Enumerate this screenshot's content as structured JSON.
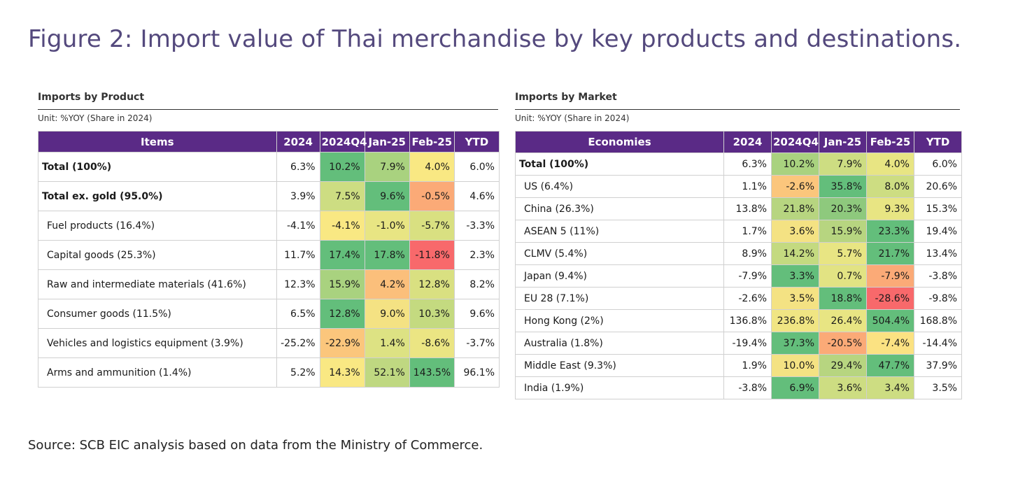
{
  "figure_title": "Figure 2: Import value of Thai merchandise by key products and destinations.",
  "source": "Source: SCB EIC analysis based on data from the Ministry of Commerce.",
  "colors": {
    "header_bg": "#5a2a86",
    "title": "#54497d",
    "heat_dark_green": "#63be7b",
    "heat_green": "#a9d27f",
    "heat_yellow": "#f9e883",
    "heat_orange": "#fbaa77",
    "heat_red": "#f8696b"
  },
  "products": {
    "title": "Imports by Product",
    "unit": "Unit: %YOY (Share in 2024)",
    "headers": [
      "Items",
      "2024",
      "2024Q4",
      "Jan-25",
      "Feb-25",
      "YTD"
    ],
    "rows": [
      {
        "label": "Total (100%)",
        "style": "bold",
        "v2024": "6.3%",
        "q4": "10.2%",
        "jan": "7.9%",
        "feb": "4.0%",
        "ytd": "6.0%",
        "c_q4": "#63be7b",
        "c_jan": "#a9d27f",
        "c_feb": "#f9e883"
      },
      {
        "label": "Total ex. gold (95.0%)",
        "style": "bold",
        "v2024": "3.9%",
        "q4": "7.5%",
        "jan": "9.6%",
        "feb": "-0.5%",
        "ytd": "4.6%",
        "c_q4": "#cddd82",
        "c_jan": "#63be7b",
        "c_feb": "#fbaa77"
      },
      {
        "label": "Fuel products (16.4%)",
        "style": "indent",
        "v2024": "-4.1%",
        "q4": "-4.1%",
        "jan": "-1.0%",
        "feb": "-5.7%",
        "ytd": "-3.3%",
        "c_q4": "#f9e883",
        "c_jan": "#e8e583",
        "c_feb": "#d9e081"
      },
      {
        "label": "Capital goods (25.3%)",
        "style": "indent",
        "v2024": "11.7%",
        "q4": "17.4%",
        "jan": "17.8%",
        "feb": "-11.8%",
        "ytd": "2.3%",
        "c_q4": "#63be7b",
        "c_jan": "#63be7b",
        "c_feb": "#f8696b"
      },
      {
        "label": "Raw and intermediate materials (41.6%)",
        "style": "indent",
        "v2024": "12.3%",
        "q4": "15.9%",
        "jan": "4.2%",
        "feb": "12.8%",
        "ytd": "8.2%",
        "c_q4": "#a9d27f",
        "c_jan": "#fbbf7b",
        "c_feb": "#d9e081"
      },
      {
        "label": "Consumer goods (11.5%)",
        "style": "indent",
        "v2024": "6.5%",
        "q4": "12.8%",
        "jan": "9.0%",
        "feb": "10.3%",
        "ytd": "9.6%",
        "c_q4": "#63be7b",
        "c_jan": "#f4e283",
        "c_feb": "#c4da80"
      },
      {
        "label": "Vehicles and logistics equipment (3.9%)",
        "style": "indent",
        "v2024": "-25.2%",
        "q4": "-22.9%",
        "jan": "1.4%",
        "feb": "-8.6%",
        "ytd": "-3.7%",
        "c_q4": "#fbc67c",
        "c_jan": "#dde283",
        "c_feb": "#ebe583"
      },
      {
        "label": "Arms and ammunition (1.4%)",
        "style": "indent",
        "v2024": "5.2%",
        "q4": "14.3%",
        "jan": "52.1%",
        "feb": "143.5%",
        "ytd": "96.1%",
        "c_q4": "#f9e883",
        "c_jan": "#bfd881",
        "c_feb": "#63be7b"
      }
    ]
  },
  "markets": {
    "title": "Imports by Market",
    "unit": "Unit: %YOY (Share in 2024)",
    "headers": [
      "Economies",
      "2024",
      "2024Q4",
      "Jan-25",
      "Feb-25",
      "YTD"
    ],
    "rows": [
      {
        "label": "Total (100%)",
        "style": "bold",
        "v2024": "6.3%",
        "q4": "10.2%",
        "jan": "7.9%",
        "feb": "4.0%",
        "ytd": "6.0%",
        "c_q4": "#a9d27f",
        "c_jan": "#cddd82",
        "c_feb": "#e8e583"
      },
      {
        "label": "US (6.4%)",
        "style": "indent",
        "v2024": "1.1%",
        "q4": "-2.6%",
        "jan": "35.8%",
        "feb": "8.0%",
        "ytd": "20.6%",
        "c_q4": "#fbc67c",
        "c_jan": "#63be7b",
        "c_feb": "#cddd82"
      },
      {
        "label": "China (26.3%)",
        "style": "indent",
        "v2024": "13.8%",
        "q4": "21.8%",
        "jan": "20.3%",
        "feb": "9.3%",
        "ytd": "15.3%",
        "c_q4": "#b7d580",
        "c_jan": "#8ec97d",
        "c_feb": "#e8e583"
      },
      {
        "label": "ASEAN 5 (11%)",
        "style": "indent",
        "v2024": "1.7%",
        "q4": "3.6%",
        "jan": "15.9%",
        "feb": "23.3%",
        "ytd": "19.4%",
        "c_q4": "#f4e283",
        "c_jan": "#b7d580",
        "c_feb": "#63be7b"
      },
      {
        "label": "CLMV (5.4%)",
        "style": "indent",
        "v2024": "8.9%",
        "q4": "14.2%",
        "jan": "5.7%",
        "feb": "21.7%",
        "ytd": "13.4%",
        "c_q4": "#c4da80",
        "c_jan": "#e8e583",
        "c_feb": "#63be7b"
      },
      {
        "label": "Japan (9.4%)",
        "style": "indent",
        "v2024": "-7.9%",
        "q4": "3.3%",
        "jan": "0.7%",
        "feb": "-7.9%",
        "ytd": "-3.8%",
        "c_q4": "#63be7b",
        "c_jan": "#e2e383",
        "c_feb": "#fbaa77"
      },
      {
        "label": "EU 28 (7.1%)",
        "style": "indent",
        "v2024": "-2.6%",
        "q4": "3.5%",
        "jan": "18.8%",
        "feb": "-28.6%",
        "ytd": "-9.8%",
        "c_q4": "#f4e283",
        "c_jan": "#63be7b",
        "c_feb": "#f8696b"
      },
      {
        "label": "Hong Kong (2%)",
        "style": "indent",
        "v2024": "136.8%",
        "q4": "236.8%",
        "jan": "26.4%",
        "feb": "504.4%",
        "ytd": "168.8%",
        "c_q4": "#f0e583",
        "c_jan": "#e8e583",
        "c_feb": "#63be7b"
      },
      {
        "label": "Australia (1.8%)",
        "style": "indent",
        "v2024": "-19.4%",
        "q4": "37.3%",
        "jan": "-20.5%",
        "feb": "-7.4%",
        "ytd": "-14.4%",
        "c_q4": "#63be7b",
        "c_jan": "#fbaa77",
        "c_feb": "#fbe282"
      },
      {
        "label": "Middle East (9.3%)",
        "style": "indent",
        "v2024": "1.9%",
        "q4": "10.0%",
        "jan": "29.4%",
        "feb": "47.7%",
        "ytd": "37.9%",
        "c_q4": "#f4e283",
        "c_jan": "#b7d580",
        "c_feb": "#63be7b"
      },
      {
        "label": "India (1.9%)",
        "style": "indent",
        "v2024": "-3.8%",
        "q4": "6.9%",
        "jan": "3.6%",
        "feb": "3.4%",
        "ytd": "3.5%",
        "c_q4": "#63be7b",
        "c_jan": "#cddd82",
        "c_feb": "#cddd82"
      }
    ]
  }
}
